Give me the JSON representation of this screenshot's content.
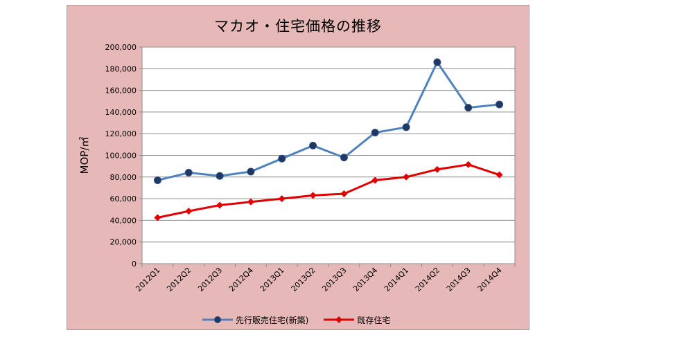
{
  "chart_data": {
    "type": "line",
    "title": "マカオ・住宅価格の推移",
    "ylabel": "MOP/㎡",
    "xlabel": "",
    "ylim": [
      0,
      200000
    ],
    "yticks": [
      "0",
      "20,000",
      "40,000",
      "60,000",
      "80,000",
      "100,000",
      "120,000",
      "140,000",
      "160,000",
      "180,000",
      "200,000"
    ],
    "categories": [
      "2012Q1",
      "2012Q2",
      "2012Q3",
      "2012Q4",
      "2013Q1",
      "2013Q2",
      "2013Q3",
      "2013Q4",
      "2014Q1",
      "2014Q2",
      "2014Q3",
      "2014Q4"
    ],
    "grid": true,
    "legend_position": "bottom",
    "series": [
      {
        "name": "先行販売住宅(新築)",
        "color": "#4f81bd",
        "marker_color": "#1f3864",
        "marker": "circle",
        "values": [
          77000,
          84000,
          81000,
          85000,
          97000,
          109000,
          98000,
          121000,
          126000,
          186000,
          144000,
          147000
        ]
      },
      {
        "name": "既存住宅",
        "color": "#e00000",
        "marker_color": "#e00000",
        "marker": "diamond",
        "values": [
          42500,
          48500,
          54000,
          57000,
          60000,
          63000,
          64500,
          77000,
          80000,
          87000,
          91500,
          82000
        ]
      }
    ],
    "plot_background": "#ffffff",
    "chart_background": "#e6b8b8"
  }
}
